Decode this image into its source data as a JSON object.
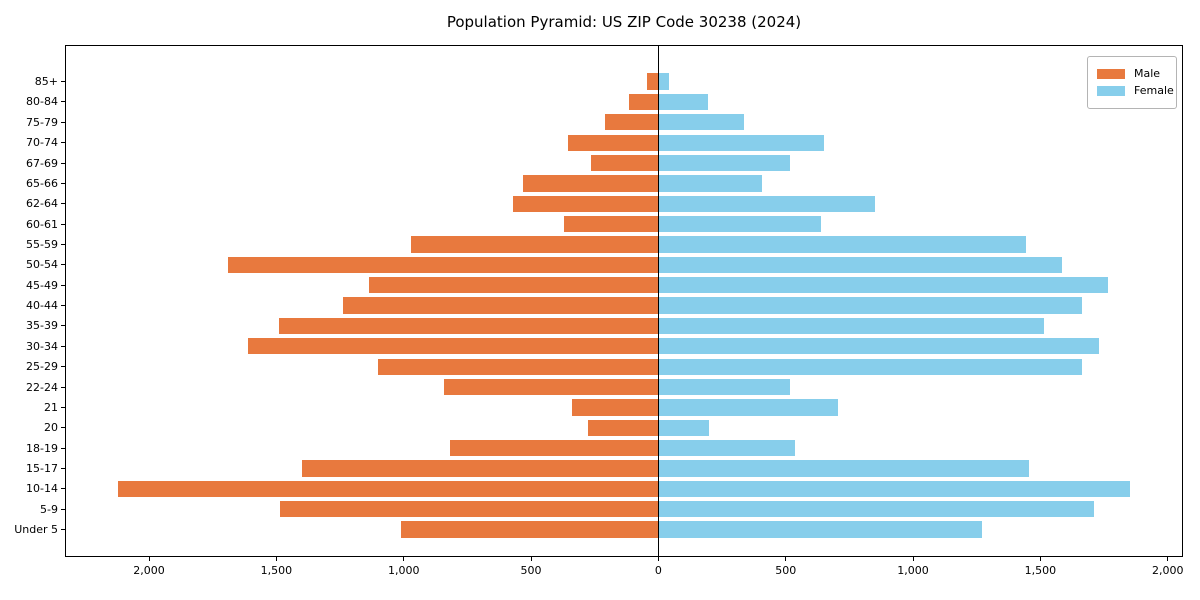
{
  "title": "Population Pyramid: US ZIP Code 30238 (2024)",
  "legend": {
    "male_label": "Male",
    "female_label": "Female"
  },
  "colors": {
    "male": "#e8793e",
    "female": "#87ceeb",
    "axis": "#000000",
    "background": "#ffffff",
    "legend_border": "#b4b4b4"
  },
  "chart_data": {
    "type": "bar",
    "subtype": "population-pyramid",
    "title": "Population Pyramid: US ZIP Code 30238 (2024)",
    "categories": [
      "85+",
      "80-84",
      "75-79",
      "70-74",
      "67-69",
      "65-66",
      "62-64",
      "60-61",
      "55-59",
      "50-54",
      "45-49",
      "40-44",
      "35-39",
      "30-34",
      "25-29",
      "22-24",
      "21",
      "20",
      "18-19",
      "15-17",
      "10-14",
      "5-9",
      "Under 5"
    ],
    "series": [
      {
        "name": "Male",
        "side": "left",
        "color": "#e8793e",
        "values": [
          45,
          115,
          210,
          355,
          265,
          530,
          570,
          370,
          970,
          1690,
          1135,
          1240,
          1490,
          1610,
          1100,
          840,
          340,
          275,
          820,
          1400,
          2120,
          1485,
          1010
        ]
      },
      {
        "name": "Female",
        "side": "right",
        "color": "#87ceeb",
        "values": [
          40,
          195,
          335,
          650,
          515,
          405,
          850,
          640,
          1445,
          1585,
          1765,
          1665,
          1515,
          1730,
          1665,
          515,
          705,
          200,
          535,
          1455,
          1850,
          1710,
          1270
        ]
      }
    ],
    "xlabel": "",
    "ylabel": "",
    "xlim": [
      -2330,
      2060
    ],
    "xtick_values": [
      -2000,
      -1500,
      -1000,
      -500,
      0,
      500,
      1000,
      1500,
      2000
    ],
    "xtick_labels": [
      "2,000",
      "1,500",
      "1,000",
      "500",
      "0",
      "500",
      "1,000",
      "1,500",
      "2,000"
    ],
    "grid": false,
    "zero_line": true,
    "legend_position": "upper right"
  }
}
